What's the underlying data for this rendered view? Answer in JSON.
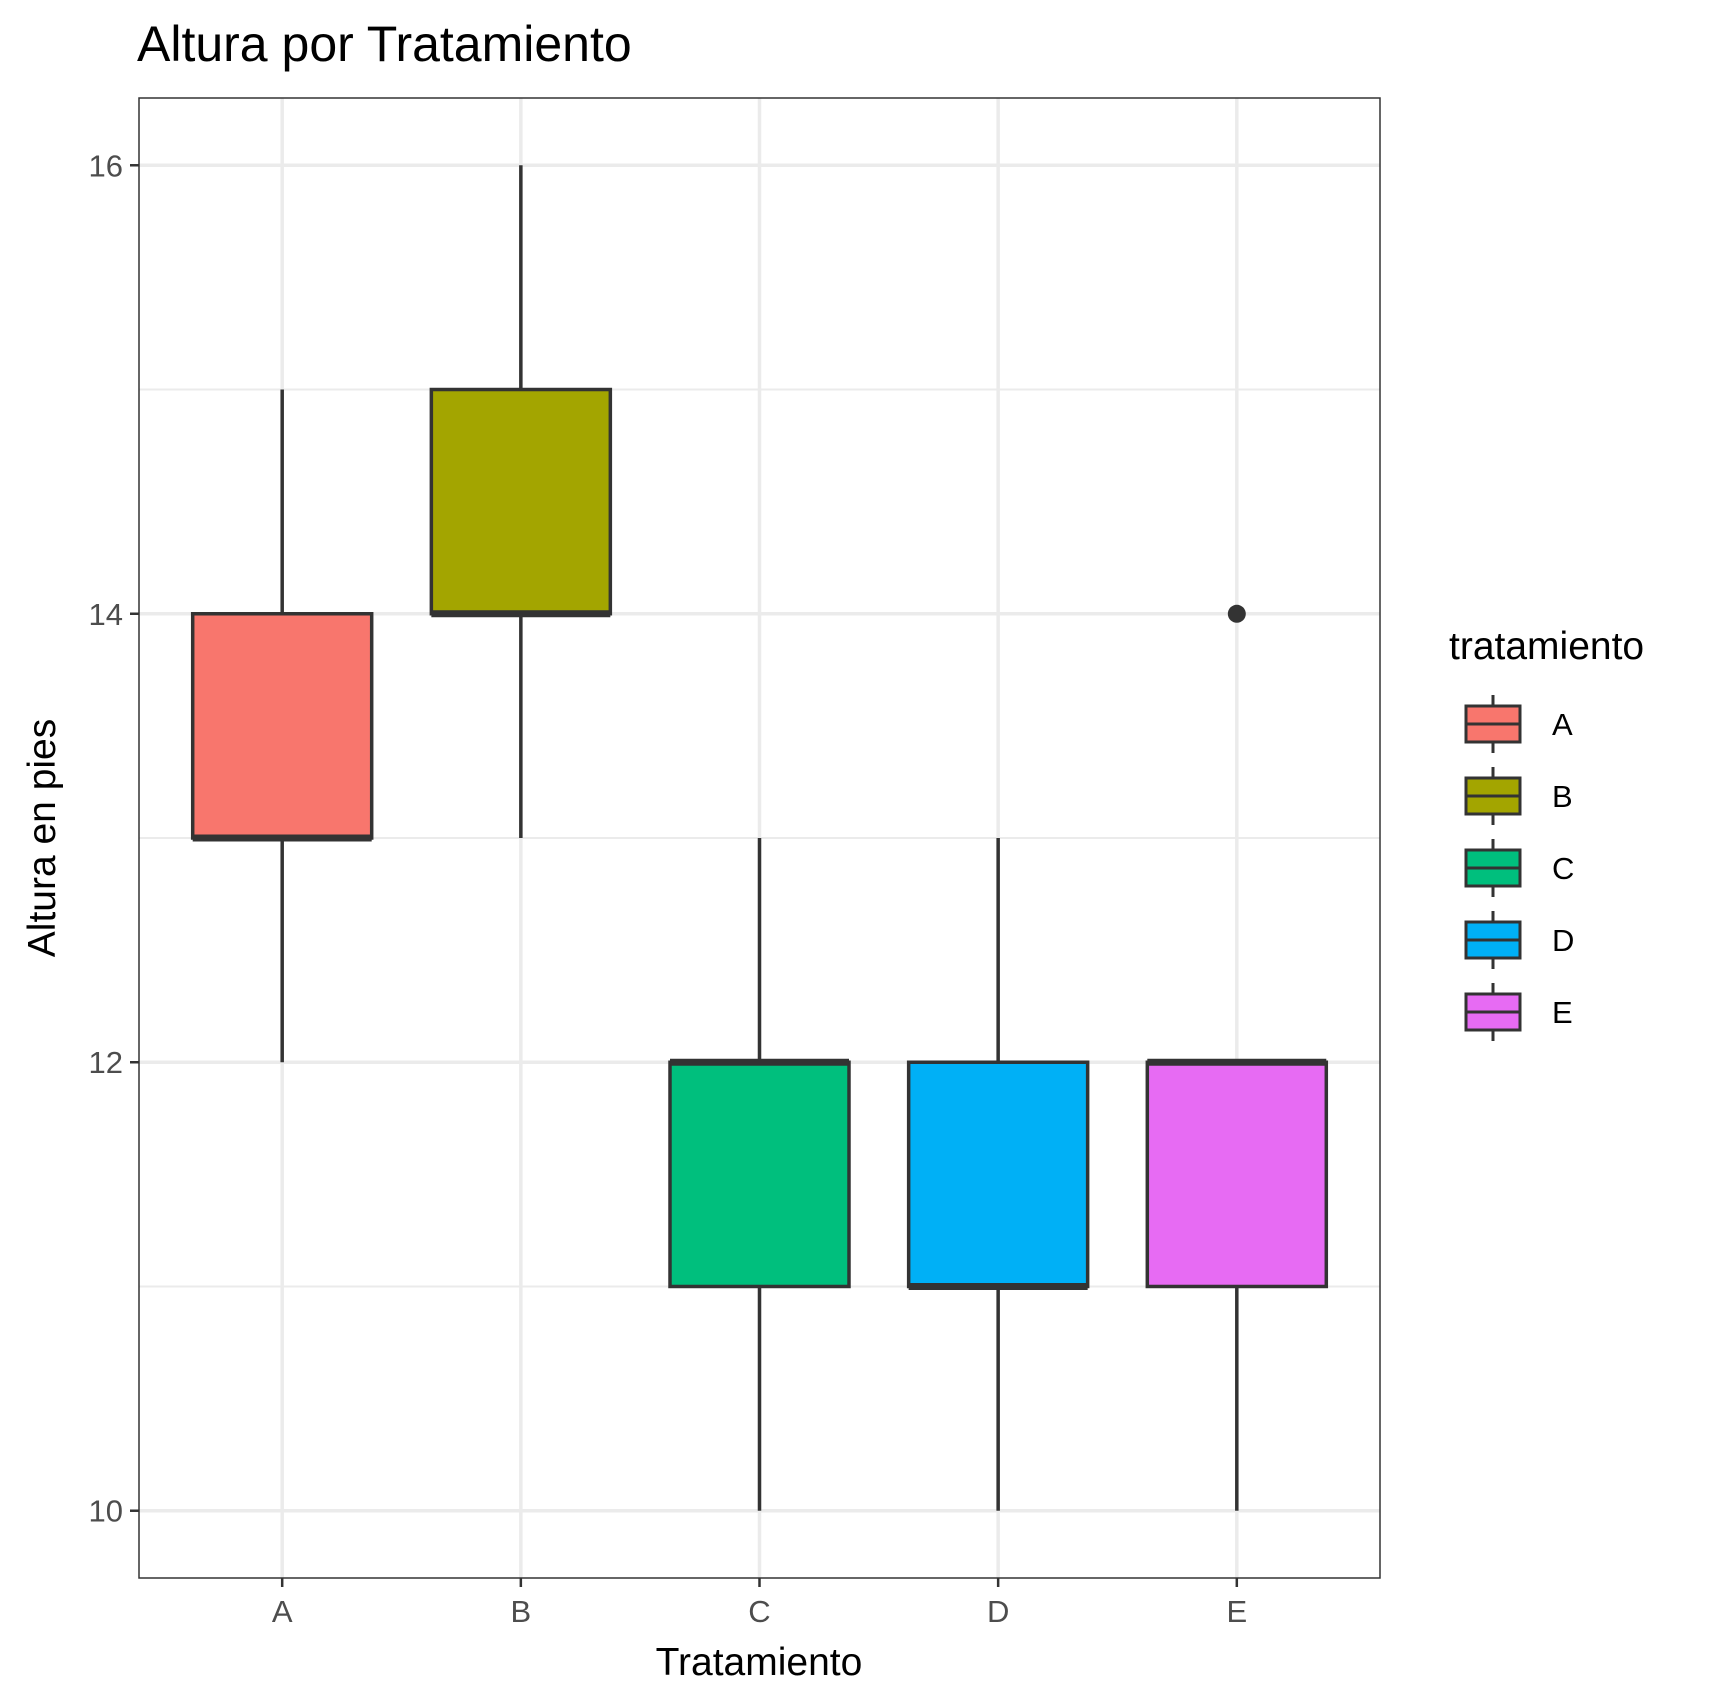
{
  "chart_data": {
    "type": "boxplot",
    "title": "Altura por Tratamiento",
    "xlabel": "Tratamiento",
    "ylabel": "Altura en pies",
    "ylim": [
      9.7,
      16.3
    ],
    "yticks": [
      10,
      12,
      14,
      16
    ],
    "grid": true,
    "legend_position": "right",
    "legend_title": "tratamiento",
    "categories": [
      "A",
      "B",
      "C",
      "D",
      "E"
    ],
    "boxes": [
      {
        "category": "A",
        "whisker_low": 12,
        "q1": 13,
        "median": 13,
        "q3": 14,
        "whisker_high": 15,
        "outliers": [],
        "color": "#F8766D"
      },
      {
        "category": "B",
        "whisker_low": 13,
        "q1": 14,
        "median": 14,
        "q3": 15,
        "whisker_high": 16,
        "outliers": [],
        "color": "#A3A500"
      },
      {
        "category": "C",
        "whisker_low": 10,
        "q1": 11,
        "median": 12,
        "q3": 12,
        "whisker_high": 13,
        "outliers": [],
        "color": "#00BF7D"
      },
      {
        "category": "D",
        "whisker_low": 10,
        "q1": 11,
        "median": 11,
        "q3": 12,
        "whisker_high": 13,
        "outliers": [],
        "color": "#00B0F6"
      },
      {
        "category": "E",
        "whisker_low": 10,
        "q1": 11,
        "median": 12,
        "q3": 12,
        "whisker_high": 12,
        "outliers": [
          14
        ],
        "color": "#E76BF3"
      }
    ]
  }
}
